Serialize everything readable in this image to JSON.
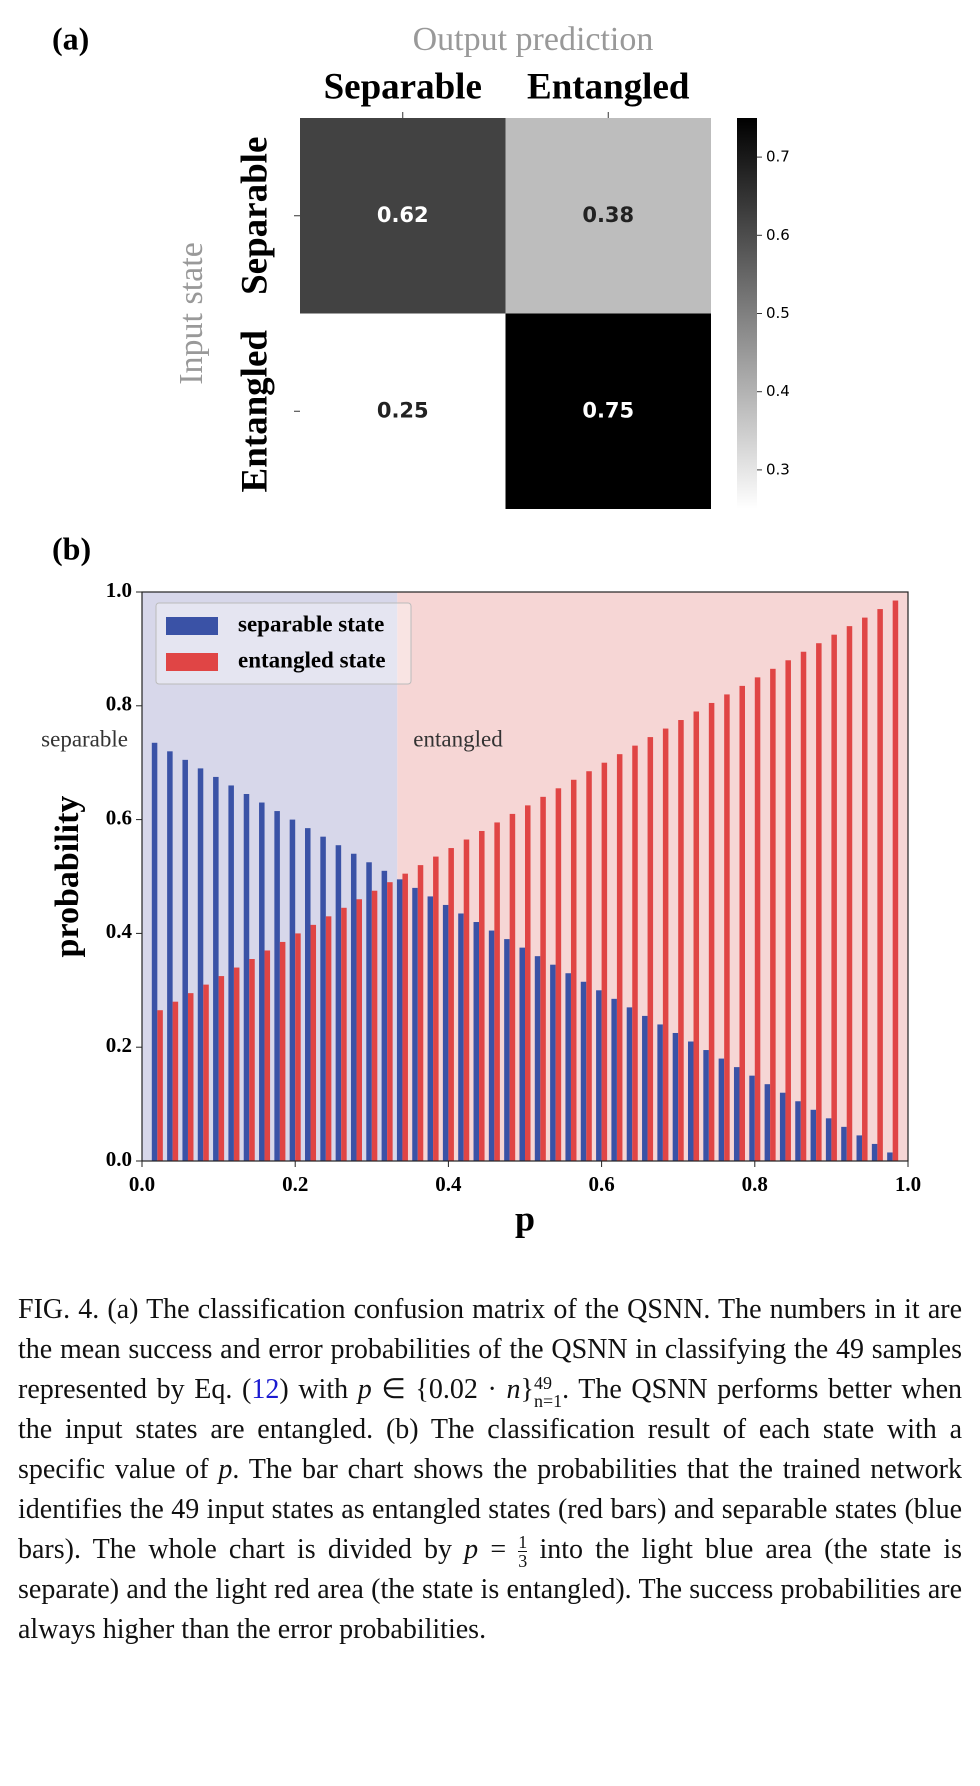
{
  "chart_data": [
    {
      "type": "heatmap",
      "panel": "(a)",
      "title": "Output prediction",
      "x_categories": [
        "Separable",
        "Entangled"
      ],
      "ylabel": "Input state",
      "y_categories": [
        "Separable",
        "Entangled"
      ],
      "values": [
        [
          0.62,
          0.38
        ],
        [
          0.25,
          0.75
        ]
      ],
      "clim": [
        0.25,
        0.75
      ],
      "colorbar_ticks": [
        0.3,
        0.4,
        0.5,
        0.6,
        0.7
      ],
      "colormap": "gray_reversed"
    },
    {
      "type": "bar",
      "panel": "(b)",
      "xlabel": "p",
      "ylabel": "probability",
      "x": [
        0.02,
        0.04,
        0.06,
        0.08,
        0.1,
        0.12,
        0.14,
        0.16,
        0.18,
        0.2,
        0.22,
        0.24,
        0.26,
        0.28,
        0.3,
        0.32,
        0.34,
        0.36,
        0.38,
        0.4,
        0.42,
        0.44,
        0.46,
        0.48,
        0.5,
        0.52,
        0.54,
        0.56,
        0.58,
        0.6,
        0.62,
        0.64,
        0.66,
        0.68,
        0.7,
        0.72,
        0.74,
        0.76,
        0.78,
        0.8,
        0.82,
        0.84,
        0.86,
        0.88,
        0.9,
        0.92,
        0.94,
        0.96,
        0.98
      ],
      "series": [
        {
          "name": "separable state",
          "color": "#3a52a6",
          "values": [
            0.735,
            0.72,
            0.705,
            0.69,
            0.675,
            0.66,
            0.645,
            0.63,
            0.615,
            0.6,
            0.585,
            0.57,
            0.555,
            0.54,
            0.525,
            0.51,
            0.495,
            0.48,
            0.465,
            0.45,
            0.435,
            0.42,
            0.405,
            0.39,
            0.375,
            0.36,
            0.345,
            0.33,
            0.315,
            0.3,
            0.285,
            0.27,
            0.255,
            0.24,
            0.225,
            0.21,
            0.195,
            0.18,
            0.165,
            0.15,
            0.135,
            0.12,
            0.105,
            0.09,
            0.075,
            0.06,
            0.045,
            0.03,
            0.015
          ]
        },
        {
          "name": "entangled state",
          "color": "#e04545",
          "values": [
            0.265,
            0.28,
            0.295,
            0.31,
            0.325,
            0.34,
            0.355,
            0.37,
            0.385,
            0.4,
            0.415,
            0.43,
            0.445,
            0.46,
            0.475,
            0.49,
            0.505,
            0.52,
            0.535,
            0.55,
            0.565,
            0.58,
            0.595,
            0.61,
            0.625,
            0.64,
            0.655,
            0.67,
            0.685,
            0.7,
            0.715,
            0.73,
            0.745,
            0.76,
            0.775,
            0.79,
            0.805,
            0.82,
            0.835,
            0.85,
            0.865,
            0.88,
            0.895,
            0.91,
            0.925,
            0.94,
            0.955,
            0.97,
            0.985
          ]
        }
      ],
      "regions": [
        {
          "label": "separable",
          "range": [
            0,
            0.3333
          ],
          "color": "#d7d7ea"
        },
        {
          "label": "entangled",
          "range": [
            0.3333,
            1
          ],
          "color": "#f6d6d5"
        }
      ],
      "xlim": [
        0,
        1
      ],
      "xticks": [
        {
          "value": 0,
          "label": "0.0"
        },
        0.2,
        0.4,
        0.6,
        0.8,
        {
          "value": 1,
          "label": "1.0"
        }
      ],
      "ylim": [
        0,
        1
      ],
      "yticks": [
        {
          "value": 0,
          "label": "0.0"
        },
        0.2,
        0.4,
        0.6,
        0.8,
        {
          "value": 1,
          "label": "1.0"
        }
      ],
      "legend": "upper left"
    }
  ],
  "caption": [
    {
      "text": "FIG. 4. (a) The classification confusion matrix of the QSNN. The numbers in it are the mean success and error probabilities of the QSNN in classifying the 49 samples represented by Eq. (",
      "style": "plain"
    },
    {
      "text": "12",
      "style": "link"
    },
    {
      "text": ") with ",
      "style": "plain"
    },
    {
      "text": "p",
      "style": "italic"
    },
    {
      "text": " ∈ {0.02 · ",
      "style": "plain"
    },
    {
      "text": "n",
      "style": "italic"
    },
    {
      "text": "}",
      "style": "plain"
    },
    {
      "sup": "49",
      "sub": "n=1",
      "style": "stack"
    },
    {
      "text": ". The QSNN performs better when the input states are entangled. (b) The classification result of each state with a specific value of ",
      "style": "plain"
    },
    {
      "text": "p",
      "style": "italic"
    },
    {
      "text": ". The bar chart shows the probabilities that the trained network identifies the 49 input states as entangled states (red bars) and separable states (blue bars). The whole chart is divided by ",
      "style": "plain"
    },
    {
      "text": "p",
      "style": "italic"
    },
    {
      "text": " = ",
      "style": "plain"
    },
    {
      "num": "1",
      "den": "3",
      "style": "fraction"
    },
    {
      "text": " into the light blue area (the state is separate) and the light red area (the state is entangled). The success probabilities are always higher than the error probabilities.",
      "style": "plain"
    }
  ]
}
